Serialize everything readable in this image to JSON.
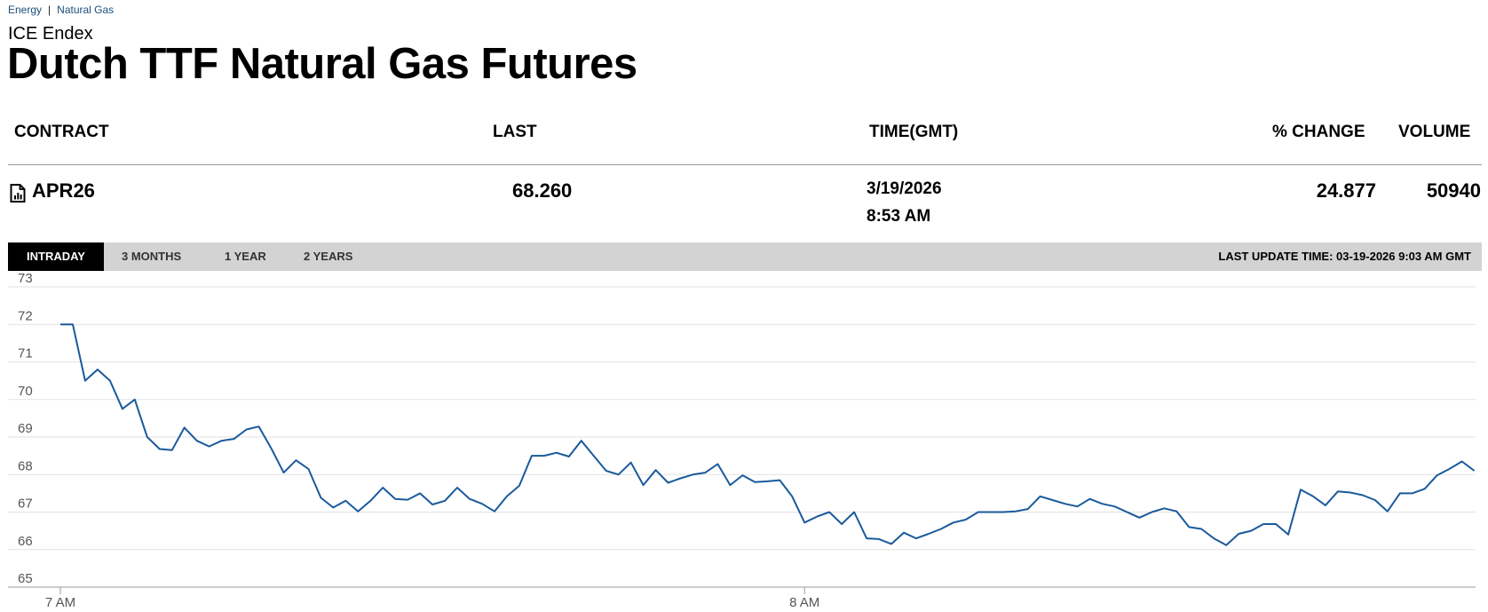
{
  "breadcrumb": {
    "items": [
      "Energy",
      "Natural Gas"
    ],
    "separator": "|"
  },
  "exchange": "ICE Endex",
  "title": "Dutch TTF Natural Gas Futures",
  "table": {
    "headers": {
      "contract": "CONTRACT",
      "last": "LAST",
      "time": "TIME(GMT)",
      "pct_change": "% CHANGE",
      "volume": "VOLUME"
    },
    "row": {
      "contract": "APR26",
      "last": "68.260",
      "date": "3/19/2026",
      "time": "8:53 AM",
      "pct_change": "24.877",
      "volume": "50940"
    }
  },
  "tabs": [
    {
      "label": "INTRADAY",
      "active": true
    },
    {
      "label": "3 MONTHS",
      "active": false
    },
    {
      "label": "1 YEAR",
      "active": false
    },
    {
      "label": "2 YEARS",
      "active": false
    }
  ],
  "last_update": "LAST UPDATE TIME: 03-19-2026 9:03 AM GMT",
  "colors": {
    "line": "#1a5a9c",
    "tabbar": "#d3d3d3",
    "active_tab": "#000000",
    "breadcrumb": "#1b4f7a"
  },
  "icons": {
    "contract": "document-chart-icon"
  },
  "chart_data": {
    "type": "line",
    "x_unit": "minutes after 7 AM",
    "ylim": [
      65,
      73
    ],
    "yticks": [
      65,
      66,
      67,
      68,
      69,
      70,
      71,
      72,
      73
    ],
    "xticks": [
      {
        "x": 0,
        "label": "7 AM"
      },
      {
        "x": 60,
        "label": "8 AM"
      }
    ],
    "grid": true,
    "series": [
      {
        "x": [
          0,
          1,
          2,
          3,
          4,
          5,
          6,
          7,
          8,
          9,
          10,
          11,
          12,
          13,
          14,
          15,
          16,
          17,
          18,
          19,
          20,
          21,
          22,
          23,
          24,
          25,
          26,
          27,
          28,
          29,
          30,
          31,
          32,
          33,
          34,
          35,
          36,
          37,
          38,
          39,
          40,
          41,
          42,
          43,
          44,
          45,
          46,
          47,
          48,
          49,
          50,
          51,
          52,
          53,
          54,
          55,
          56,
          57,
          58,
          59,
          60,
          61,
          62,
          63,
          64,
          65,
          66,
          67,
          68,
          69,
          70,
          71,
          72,
          73,
          74,
          75,
          76,
          77,
          78,
          79,
          80,
          81,
          82,
          83,
          84,
          85,
          86,
          87,
          88,
          89,
          90,
          91,
          92,
          93,
          94,
          95,
          96,
          97,
          98,
          99,
          100,
          101,
          102,
          103,
          104,
          105,
          106,
          107,
          108,
          109,
          110,
          111,
          112,
          113,
          114
        ],
        "values": [
          72.0,
          72.0,
          70.5,
          70.8,
          70.5,
          69.75,
          70.0,
          69.0,
          68.68,
          68.65,
          69.25,
          68.9,
          68.75,
          68.9,
          68.95,
          69.2,
          69.28,
          68.7,
          68.05,
          68.38,
          68.15,
          67.38,
          67.12,
          67.3,
          67.02,
          67.3,
          67.65,
          67.35,
          67.33,
          67.5,
          67.2,
          67.3,
          67.65,
          67.35,
          67.22,
          67.02,
          67.42,
          67.7,
          68.5,
          68.5,
          68.58,
          68.48,
          68.9,
          68.5,
          68.1,
          68.0,
          68.32,
          67.72,
          68.12,
          67.78,
          67.9,
          68.0,
          68.05,
          68.28,
          67.72,
          67.98,
          67.8,
          67.82,
          67.85,
          67.42,
          66.72,
          66.88,
          67.0,
          66.68,
          67.0,
          66.3,
          66.28,
          66.15,
          66.45,
          66.3,
          66.42,
          66.55,
          66.72,
          66.8,
          67.0,
          67.0,
          67.0,
          67.02,
          67.08,
          67.42,
          67.32,
          67.22,
          67.15,
          67.35,
          67.22,
          67.15,
          67.0,
          66.85,
          67.0,
          67.1,
          67.02,
          66.6,
          66.55,
          66.3,
          66.12,
          66.42,
          66.5,
          66.68,
          66.68,
          66.4,
          67.6,
          67.42,
          67.18,
          67.55,
          67.52,
          67.45,
          67.32,
          67.02,
          67.5,
          67.5,
          67.62,
          67.98,
          68.15,
          68.35,
          68.1
        ]
      }
    ]
  }
}
